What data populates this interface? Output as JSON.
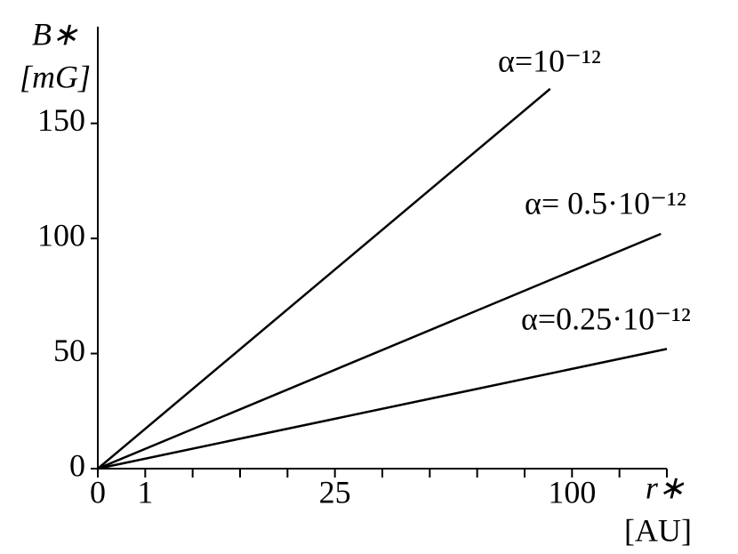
{
  "chart_data": {
    "type": "line",
    "xscale": "sqrt",
    "x_label": "r∗",
    "x_unit": "[AU]",
    "y_label": "B∗",
    "y_unit": "[mG]",
    "xlim": [
      0,
      144
    ],
    "ylim": [
      0,
      192
    ],
    "xticks": [
      0,
      1,
      25,
      100
    ],
    "xminor": [
      4,
      9,
      16,
      36,
      49,
      64,
      81,
      121,
      144
    ],
    "yticks": [
      0,
      50,
      100,
      150
    ],
    "series": [
      {
        "name": "α=10⁻¹²",
        "color": "#000000",
        "x": [
          0,
          91
        ],
        "values": [
          0,
          165
        ]
      },
      {
        "name": "α= 0.5·10⁻¹²",
        "color": "#000000",
        "x": [
          0,
          141
        ],
        "values": [
          0,
          102
        ]
      },
      {
        "name": "α=0.25·10⁻¹²",
        "color": "#000000",
        "x": [
          0,
          144
        ],
        "values": [
          0,
          52
        ]
      }
    ]
  }
}
